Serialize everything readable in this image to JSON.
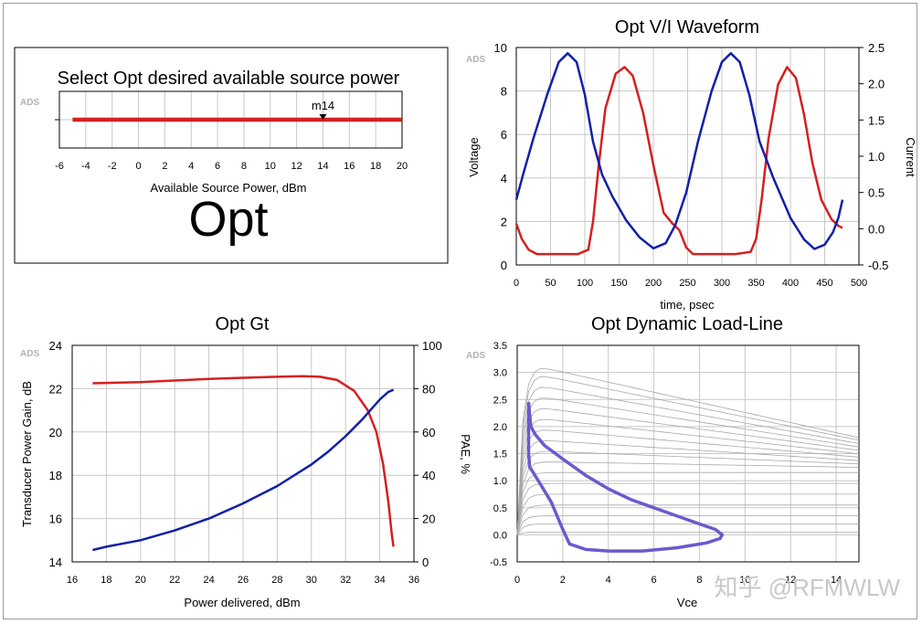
{
  "watermark": "知乎 @RFMWLW",
  "ads_label": "ADS",
  "colors": {
    "red": "#d42020",
    "blue": "#1020a8",
    "purple": "#6a5acd",
    "grid": "#c8c8c8",
    "family": "#a8a8a8"
  },
  "chart_data": [
    {
      "id": "source-power",
      "type": "line",
      "title": "Select Opt desired available source power",
      "xlabel": "Available Source Power, dBm",
      "xlim": [
        -6,
        20
      ],
      "xticks": [
        -6,
        -4,
        -2,
        0,
        2,
        4,
        6,
        8,
        10,
        12,
        14,
        16,
        18,
        20
      ],
      "series": [
        {
          "x": [
            -5,
            20
          ],
          "y": [
            0,
            0
          ]
        }
      ],
      "marker": {
        "label": "m14",
        "x": 14
      },
      "big_label": "Opt"
    },
    {
      "id": "vi-waveform",
      "type": "line",
      "title": "Opt V/I Waveform",
      "xlabel": "time, psec",
      "ylabel": "Voltage",
      "y2label": "Current",
      "xlim": [
        0,
        500
      ],
      "ylim": [
        0,
        10
      ],
      "y2lim": [
        -0.5,
        2.5
      ],
      "xticks": [
        0,
        50,
        100,
        150,
        200,
        250,
        300,
        350,
        400,
        450,
        500
      ],
      "yticks": [
        0,
        2,
        4,
        6,
        8,
        10
      ],
      "y2ticks": [
        -0.5,
        0.0,
        0.5,
        1.0,
        1.5,
        2.0,
        2.5
      ],
      "y2tick_labels": [
        "-0.5",
        "0.0",
        "0.5",
        "1.0",
        "1.5",
        "2.0",
        "2.5"
      ],
      "series": [
        {
          "axis": "y",
          "x": [
            0,
            8,
            18,
            30,
            50,
            70,
            90,
            105,
            112,
            120,
            130,
            145,
            158,
            170,
            185,
            200,
            215,
            228,
            238,
            248,
            258,
            270,
            290,
            320,
            342,
            350,
            358,
            368,
            382,
            395,
            408,
            420,
            432,
            445,
            460,
            470,
            476
          ],
          "y": [
            1.9,
            1.2,
            0.7,
            0.5,
            0.5,
            0.5,
            0.5,
            0.7,
            2.0,
            4.5,
            7.2,
            8.8,
            9.1,
            8.7,
            7.0,
            4.6,
            2.4,
            1.9,
            1.6,
            0.8,
            0.5,
            0.5,
            0.5,
            0.5,
            0.6,
            1.2,
            3.0,
            5.8,
            8.3,
            9.1,
            8.6,
            6.9,
            4.7,
            3.0,
            2.1,
            1.8,
            1.7
          ]
        },
        {
          "axis": "y2",
          "x": [
            0,
            10,
            25,
            45,
            62,
            75,
            88,
            100,
            112,
            125,
            140,
            160,
            180,
            200,
            218,
            232,
            248,
            265,
            285,
            300,
            313,
            326,
            340,
            355,
            375,
            400,
            420,
            435,
            450,
            462,
            470,
            476
          ],
          "y": [
            0.4,
            0.75,
            1.25,
            1.85,
            2.3,
            2.42,
            2.3,
            1.85,
            1.2,
            0.75,
            0.45,
            0.12,
            -0.12,
            -0.27,
            -0.2,
            0.05,
            0.5,
            1.2,
            1.9,
            2.3,
            2.42,
            2.3,
            1.85,
            1.2,
            0.7,
            0.15,
            -0.15,
            -0.28,
            -0.22,
            -0.05,
            0.15,
            0.4
          ]
        }
      ]
    },
    {
      "id": "gt",
      "type": "line",
      "title": "Opt Gt",
      "xlabel": "Power delivered, dBm",
      "ylabel": "Transducer Power Gain, dB",
      "y2label": "PAE, %",
      "xlim": [
        16,
        36
      ],
      "ylim": [
        14,
        24
      ],
      "y2lim": [
        0,
        100
      ],
      "xticks": [
        16,
        18,
        20,
        22,
        24,
        26,
        28,
        30,
        32,
        34,
        36
      ],
      "yticks": [
        14,
        16,
        18,
        20,
        22,
        24
      ],
      "y2ticks": [
        0,
        20,
        40,
        60,
        80,
        100
      ],
      "series": [
        {
          "axis": "y",
          "x": [
            17.2,
            20,
            24,
            28,
            29.5,
            30.5,
            31.5,
            32.5,
            33.3,
            33.8,
            34.2,
            34.5,
            34.7,
            34.8
          ],
          "y": [
            22.25,
            22.3,
            22.45,
            22.55,
            22.58,
            22.55,
            22.4,
            21.9,
            21.0,
            20.0,
            18.5,
            16.8,
            15.3,
            14.7
          ]
        },
        {
          "axis": "y2",
          "x": [
            17.2,
            18,
            20,
            22,
            24,
            26,
            28,
            30,
            31,
            32,
            33,
            34,
            34.5,
            34.8
          ],
          "y": [
            5.5,
            7,
            10,
            14.5,
            20,
            27,
            35,
            45,
            51,
            58,
            66,
            75,
            78.5,
            79.5
          ]
        }
      ]
    },
    {
      "id": "load-line",
      "type": "line",
      "title": "Opt Dynamic Load-Line",
      "xlabel": "Vce",
      "xlim": [
        0,
        15
      ],
      "ylim": [
        -0.5,
        3.5
      ],
      "xticks": [
        0,
        2,
        4,
        6,
        8,
        10,
        12,
        14
      ],
      "yticks": [
        -0.5,
        0.0,
        0.5,
        1.0,
        1.5,
        2.0,
        2.5,
        3.0,
        3.5
      ],
      "ytick_labels": [
        "-0.5",
        "0.0",
        "0.5",
        "1.0",
        "1.5",
        "2.0",
        "2.5",
        "3.0",
        "3.5"
      ],
      "family_peaks": [
        0.05,
        0.2,
        0.35,
        0.55,
        0.75,
        0.95,
        1.15,
        1.35,
        1.55,
        1.75,
        1.95,
        2.15,
        2.35,
        2.55,
        2.75,
        2.95,
        3.1
      ],
      "series": [
        {
          "x": [
            0.5,
            0.55,
            0.6,
            0.8,
            1.2,
            2,
            3,
            4,
            5,
            6,
            7,
            8,
            8.7,
            9,
            8.9,
            8.3,
            7,
            5.5,
            4,
            3,
            2.3,
            2.0,
            1.5,
            1.0,
            0.7,
            0.55,
            0.5,
            0.5,
            0.5
          ],
          "y": [
            2.45,
            2.2,
            2.0,
            1.85,
            1.65,
            1.4,
            1.1,
            0.85,
            0.65,
            0.5,
            0.35,
            0.2,
            0.1,
            0.0,
            -0.07,
            -0.15,
            -0.24,
            -0.3,
            -0.3,
            -0.27,
            -0.17,
            0.1,
            0.6,
            0.95,
            1.15,
            1.25,
            1.5,
            2.0,
            2.45
          ]
        }
      ]
    }
  ]
}
